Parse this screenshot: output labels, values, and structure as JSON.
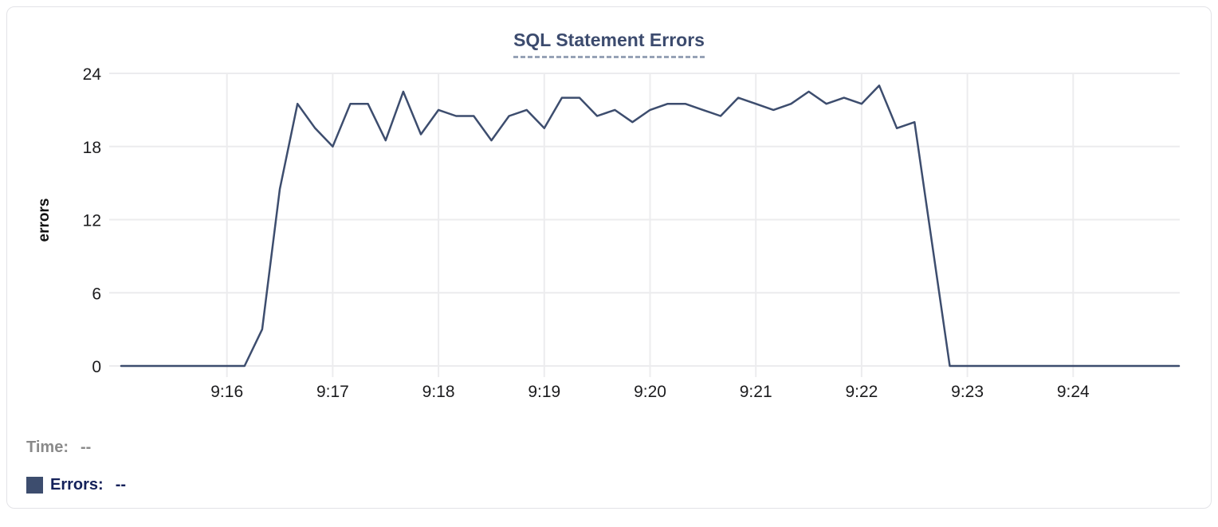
{
  "header": {
    "title": "SQL Statement Errors",
    "title_color": "#3c4b6e",
    "underline_color": "#97a2b6"
  },
  "tooltip": {
    "time_label": "Time:",
    "time_value": "--",
    "errors_label": "Errors:",
    "errors_value": "--",
    "swatch_color": "#3d4d6e",
    "time_label_color": "#8a8a8a",
    "errors_label_color": "#14215a"
  },
  "chart_data": {
    "type": "line",
    "title": "SQL Statement Errors",
    "xlabel": "",
    "ylabel": "errors",
    "ylim": [
      0,
      24
    ],
    "yticks": [
      0,
      6,
      12,
      18,
      24
    ],
    "xticks": [
      "9:16",
      "9:17",
      "9:18",
      "9:19",
      "9:20",
      "9:21",
      "9:22",
      "9:23",
      "9:24"
    ],
    "x_range": [
      "9:15:00",
      "9:25:00"
    ],
    "grid": true,
    "legend_position": "below-left",
    "line_color": "#3d4d6e",
    "gridline_color": "#ececee",
    "tick_label_color": "#1c1c1e",
    "series": [
      {
        "name": "Errors",
        "times": [
          "9:15:00",
          "9:15:10",
          "9:15:20",
          "9:15:30",
          "9:15:40",
          "9:15:50",
          "9:16:00",
          "9:16:10",
          "9:16:20",
          "9:16:30",
          "9:16:40",
          "9:16:50",
          "9:17:00",
          "9:17:10",
          "9:17:20",
          "9:17:30",
          "9:17:40",
          "9:17:50",
          "9:18:00",
          "9:18:10",
          "9:18:20",
          "9:18:30",
          "9:18:40",
          "9:18:50",
          "9:19:00",
          "9:19:10",
          "9:19:20",
          "9:19:30",
          "9:19:40",
          "9:19:50",
          "9:20:00",
          "9:20:10",
          "9:20:20",
          "9:20:30",
          "9:20:40",
          "9:20:50",
          "9:21:00",
          "9:21:10",
          "9:21:20",
          "9:21:30",
          "9:21:40",
          "9:21:50",
          "9:22:00",
          "9:22:10",
          "9:22:20",
          "9:22:30",
          "9:22:40",
          "9:22:50",
          "9:23:00",
          "9:23:10",
          "9:23:20",
          "9:23:30",
          "9:23:40",
          "9:23:50",
          "9:24:00",
          "9:24:10",
          "9:24:20",
          "9:24:30",
          "9:24:40",
          "9:24:50",
          "9:25:00"
        ],
        "values": [
          0,
          0,
          0,
          0,
          0,
          0,
          0,
          0,
          3,
          14.5,
          21.5,
          19.5,
          18,
          21.5,
          21.5,
          18.5,
          22.5,
          19,
          21,
          20.5,
          20.5,
          18.5,
          20.5,
          21,
          19.5,
          22,
          22,
          20.5,
          21,
          20,
          21,
          21.5,
          21.5,
          21,
          20.5,
          22,
          21.5,
          21,
          21.5,
          22.5,
          21.5,
          22,
          21.5,
          23,
          19.5,
          20,
          10,
          0,
          0,
          0,
          0,
          0,
          0,
          0,
          0,
          0,
          0,
          0,
          0,
          0,
          0
        ]
      }
    ]
  }
}
